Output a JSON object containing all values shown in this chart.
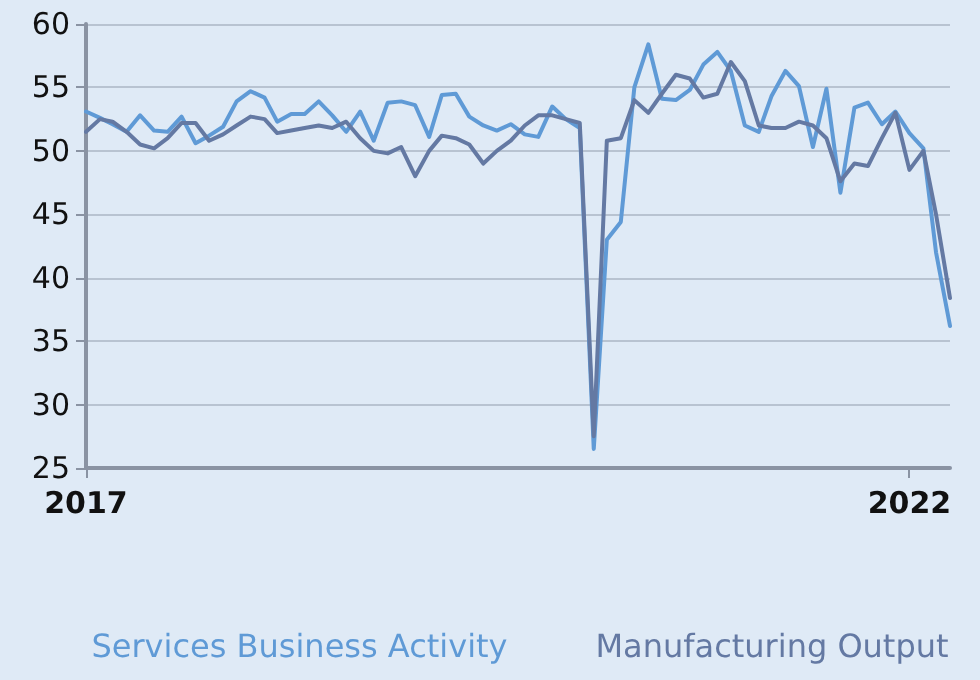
{
  "chart_data": {
    "type": "line",
    "x": [
      "2017-01",
      "2017-02",
      "2017-03",
      "2017-04",
      "2017-05",
      "2017-06",
      "2017-07",
      "2017-08",
      "2017-09",
      "2017-10",
      "2017-11",
      "2017-12",
      "2018-01",
      "2018-02",
      "2018-03",
      "2018-04",
      "2018-05",
      "2018-06",
      "2018-07",
      "2018-08",
      "2018-09",
      "2018-10",
      "2018-11",
      "2018-12",
      "2019-01",
      "2019-02",
      "2019-03",
      "2019-04",
      "2019-05",
      "2019-06",
      "2019-07",
      "2019-08",
      "2019-09",
      "2019-10",
      "2019-11",
      "2019-12",
      "2020-01",
      "2020-02",
      "2020-03",
      "2020-04",
      "2020-05",
      "2020-06",
      "2020-07",
      "2020-08",
      "2020-09",
      "2020-10",
      "2020-11",
      "2020-12",
      "2021-01",
      "2021-02",
      "2021-03",
      "2021-04",
      "2021-05",
      "2021-06",
      "2021-07",
      "2021-08",
      "2021-09",
      "2021-10",
      "2021-11",
      "2021-12",
      "2022-01",
      "2022-02",
      "2022-03",
      "2022-04"
    ],
    "series": [
      {
        "name": "Services Business Activity",
        "color": "#5f9ad6",
        "values": [
          53.1,
          52.6,
          52.1,
          51.5,
          52.8,
          51.6,
          51.5,
          52.7,
          50.6,
          51.2,
          51.9,
          53.9,
          54.7,
          54.2,
          52.3,
          52.9,
          52.9,
          53.9,
          52.8,
          51.5,
          53.1,
          50.8,
          53.8,
          53.9,
          53.6,
          51.1,
          54.4,
          54.5,
          52.7,
          52.0,
          51.6,
          52.1,
          51.3,
          51.1,
          53.5,
          52.5,
          51.8,
          26.5,
          43.0,
          44.4,
          55.0,
          58.4,
          54.1,
          54.0,
          54.8,
          56.8,
          57.8,
          56.3,
          52.0,
          51.5,
          54.3,
          56.3,
          55.1,
          50.3,
          54.9,
          46.7,
          53.4,
          53.8,
          52.1,
          53.1,
          51.4,
          50.2,
          42.0,
          36.2
        ]
      },
      {
        "name": "Manufacturing Output",
        "color": "#6479a3",
        "values": [
          51.5,
          52.5,
          52.3,
          51.5,
          50.5,
          50.2,
          51.0,
          52.2,
          52.2,
          50.8,
          51.3,
          52.0,
          52.7,
          52.5,
          51.4,
          51.6,
          51.8,
          52.0,
          51.8,
          52.3,
          51.0,
          50.0,
          49.8,
          50.3,
          48.0,
          50.0,
          51.2,
          51.0,
          50.5,
          49.0,
          50.0,
          50.8,
          52.0,
          52.8,
          52.8,
          52.5,
          52.2,
          27.5,
          50.8,
          51.0,
          54.0,
          53.0,
          54.5,
          56.0,
          55.7,
          54.2,
          54.5,
          57.0,
          55.5,
          52.0,
          51.8,
          51.8,
          52.3,
          52.0,
          51.0,
          47.6,
          49.0,
          48.8,
          51.0,
          53.0,
          48.5,
          50.0,
          45.0,
          38.4
        ]
      }
    ],
    "xlim": [
      "2017-01",
      "2022-04"
    ],
    "xticks": [
      {
        "value": "2017",
        "label": "2017"
      },
      {
        "value": "2022",
        "label": "2022"
      }
    ],
    "ylim": [
      25,
      60
    ],
    "yticks": [
      25,
      30,
      35,
      40,
      45,
      50,
      55,
      60
    ],
    "grid": "y",
    "legend": "bottom",
    "marker": "none",
    "line_style": "solid"
  }
}
